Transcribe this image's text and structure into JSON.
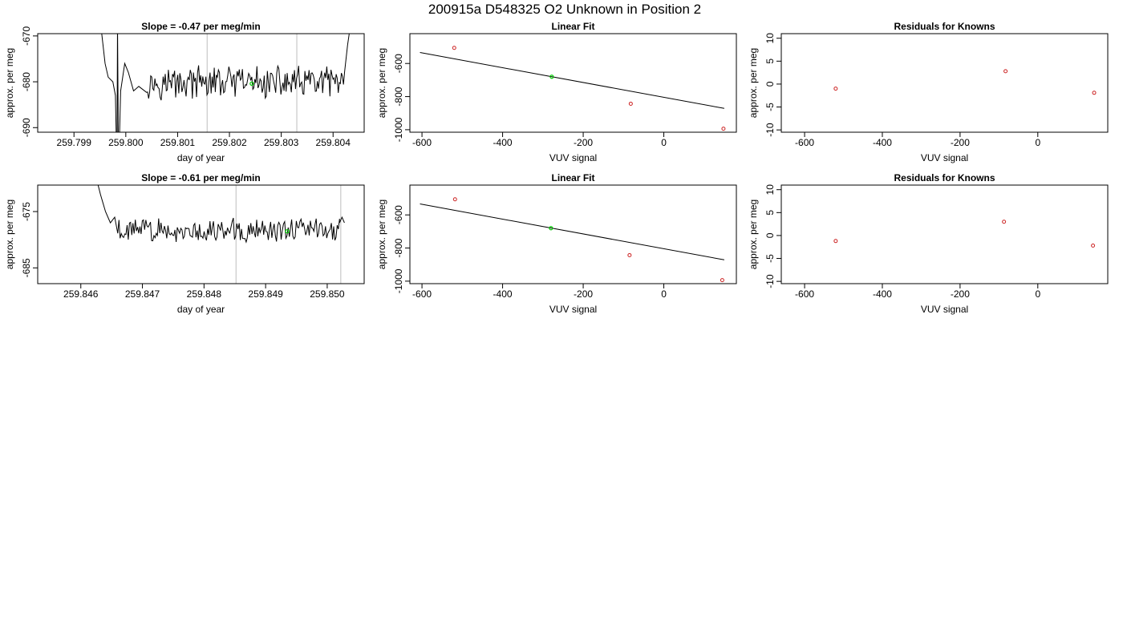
{
  "page_title": "200915a     D548325   O2 Unknown in Position  2",
  "colors": {
    "axis": "#000000",
    "trace": "#000000",
    "vline": "#c8c8c8",
    "unknown_point": "#00cc00",
    "known_point": "#cc2222",
    "fit_line": "#000000"
  },
  "chart_data": [
    {
      "type": "line",
      "title": "Slope =  -0.47  per meg/min",
      "xlabel": "day of year",
      "ylabel": "approx. per meg",
      "xlim": [
        259.7983,
        259.8046
      ],
      "ylim": [
        -691,
        -669.5
      ],
      "xticks": [
        259.799,
        259.8,
        259.801,
        259.802,
        259.803,
        259.804
      ],
      "xtick_labels": [
        "259.799",
        "259.800",
        "259.801",
        "259.802",
        "259.803",
        "259.804"
      ],
      "yticks": [
        -690,
        -680,
        -670
      ],
      "ytick_labels": [
        "-690",
        "-680",
        "-670"
      ],
      "vlines": [
        259.79984,
        259.80157,
        259.8033
      ],
      "highlight_point": {
        "x": 259.80243,
        "y": -680.4
      },
      "series": [
        {
          "start_x": 259.8004,
          "end_x": 259.80422,
          "mean": -680.2,
          "amplitude": 3.0,
          "spikes": [
            {
              "x": [
                259.79953,
                259.7996,
                259.79966,
                259.79975
              ],
              "y": [
                -669,
                -676,
                -679,
                -680
              ]
            },
            {
              "x": [
                259.7998,
                259.79983,
                259.79984,
                259.79986
              ],
              "y": [
                -683,
                -700,
                -668,
                -700
              ]
            },
            {
              "x": [
                259.7999,
                259.79998,
                259.80005,
                259.80015,
                259.80025
              ],
              "y": [
                -682,
                -676,
                -678,
                -682,
                -681
              ]
            }
          ],
          "tail": {
            "x": [
              259.80422,
              259.80428,
              259.80433
            ],
            "y": [
              -678,
              -672,
              -668
            ]
          }
        }
      ]
    },
    {
      "type": "scatter",
      "title": "Linear Fit",
      "xlabel": "VUV signal",
      "ylabel": "approx. per meg",
      "xlim": [
        -630,
        180
      ],
      "ylim": [
        -1015,
        -420
      ],
      "xticks": [
        -600,
        -400,
        -200,
        0
      ],
      "xtick_labels": [
        "-600",
        "-400",
        "-200",
        "0"
      ],
      "yticks": [
        -1000,
        -800,
        -600
      ],
      "ytick_labels": [
        "-1000",
        "-800",
        "-600"
      ],
      "fit_line": {
        "slope": 1.33,
        "intercept": -814
      },
      "known_points": {
        "x": [
          -520,
          -82,
          148
        ],
        "y": [
          -506,
          -843,
          -994
        ]
      },
      "unknown_points": {
        "x": [
          -278
        ],
        "y": [
          -680
        ]
      }
    },
    {
      "type": "scatter",
      "title": "Residuals for Knowns",
      "xlabel": "VUV signal",
      "ylabel": "approx. per meg",
      "xlim": [
        -660,
        180
      ],
      "ylim": [
        -10.5,
        11
      ],
      "xticks": [
        -600,
        -400,
        -200,
        0
      ],
      "xtick_labels": [
        "-600",
        "-400",
        "-200",
        "0"
      ],
      "yticks": [
        -10,
        -5,
        0,
        5,
        10
      ],
      "ytick_labels": [
        "-10",
        "-5",
        "0",
        "5",
        "10"
      ],
      "known_points": {
        "x": [
          -520,
          -83,
          145
        ],
        "y": [
          -1.0,
          2.8,
          -1.9
        ]
      }
    },
    {
      "type": "line",
      "title": "Slope =  -0.61  per meg/min",
      "xlabel": "day of year",
      "ylabel": "approx. per meg",
      "xlim": [
        259.8453,
        259.8506
      ],
      "ylim": [
        -687.8,
        -670.3
      ],
      "xticks": [
        259.846,
        259.847,
        259.848,
        259.849,
        259.85
      ],
      "xtick_labels": [
        "259.846",
        "259.847",
        "259.848",
        "259.849",
        "259.850"
      ],
      "yticks": [
        -685,
        -675
      ],
      "ytick_labels": [
        "-685",
        "-675"
      ],
      "vlines": [
        259.84852,
        259.85022
      ],
      "highlight_point": {
        "x": 259.84935,
        "y": -678.5
      },
      "series": [
        {
          "start_x": 259.8466,
          "end_x": 259.8502,
          "mean": -678.2,
          "amplitude": 1.8,
          "spikes": [
            {
              "x": [
                259.84625,
                259.84632,
                259.8464,
                259.84648,
                259.84655
              ],
              "y": [
                -669,
                -672,
                -675,
                -677,
                -676
              ]
            }
          ],
          "tail": {
            "x": [
              259.8502,
              259.85024,
              259.85028
            ],
            "y": [
              -677,
              -676,
              -677
            ]
          }
        }
      ]
    },
    {
      "type": "scatter",
      "title": "Linear Fit",
      "xlabel": "VUV signal",
      "ylabel": "approx. per meg",
      "xlim": [
        -630,
        180
      ],
      "ylim": [
        -1015,
        -420
      ],
      "xticks": [
        -600,
        -400,
        -200,
        0
      ],
      "xtick_labels": [
        "-600",
        "-400",
        "-200",
        "0"
      ],
      "yticks": [
        -1000,
        -800,
        -600
      ],
      "ytick_labels": [
        "-1000",
        "-800",
        "-600"
      ],
      "fit_line": {
        "slope": 1.33,
        "intercept": -814
      },
      "known_points": {
        "x": [
          -518,
          -85,
          145
        ],
        "y": [
          -506,
          -843,
          -994
        ]
      },
      "unknown_points": {
        "x": [
          -280
        ],
        "y": [
          -680
        ]
      }
    },
    {
      "type": "scatter",
      "title": "Residuals for Knowns",
      "xlabel": "VUV signal",
      "ylabel": "approx. per meg",
      "xlim": [
        -660,
        180
      ],
      "ylim": [
        -10.5,
        11
      ],
      "xticks": [
        -600,
        -400,
        -200,
        0
      ],
      "xtick_labels": [
        "-600",
        "-400",
        "-200",
        "0"
      ],
      "yticks": [
        -10,
        -5,
        0,
        5,
        10
      ],
      "ytick_labels": [
        "-10",
        "-5",
        "0",
        "5",
        "10"
      ],
      "known_points": {
        "x": [
          -520,
          -87,
          142
        ],
        "y": [
          -1.2,
          3.0,
          -2.2
        ]
      }
    }
  ]
}
